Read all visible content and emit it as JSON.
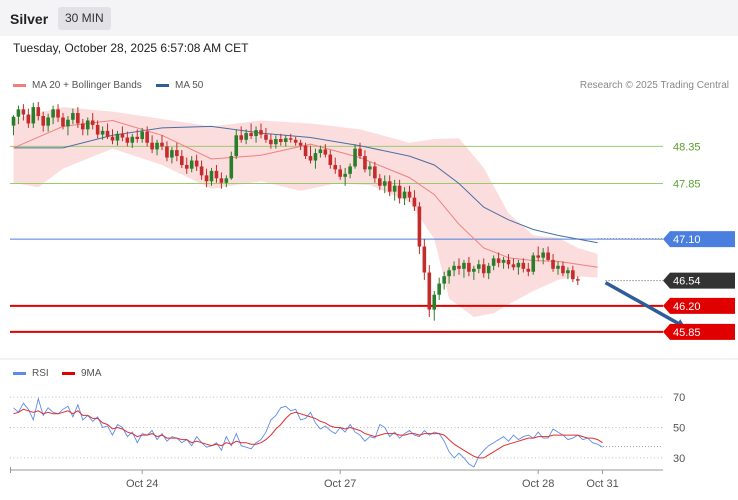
{
  "header": {
    "title": "Silver",
    "timeframe": "30 MIN"
  },
  "datetime": "Tuesday, October 28, 2025 6:57:08 AM CET",
  "legend": {
    "ma20": "MA 20 + Bollinger Bands",
    "ma50": "MA 50"
  },
  "credit": "Research © 2025 Trading Central",
  "rsi_legend": {
    "rsi": "RSI",
    "ma9": "9MA"
  },
  "colors": {
    "up": "#2a7d2a",
    "down": "#c42b2b",
    "ma20": "#f08080",
    "ma50": "#4a6fa5",
    "band": "#fbd5d5",
    "support": "#e00000",
    "pivot": "#4a7fe0",
    "resistance": "#9bcc6b",
    "current": "#333333",
    "arrow": "#2e5d99",
    "rsi": "#5b8de8",
    "rsi_ma": "#e03030"
  },
  "chart_data": [
    {
      "type": "candlestick",
      "xlabels": [
        {
          "label": "Oct 24",
          "index": 26
        },
        {
          "label": "Oct 27",
          "index": 66
        },
        {
          "label": "Oct 28",
          "index": 106
        },
        {
          "label": "Oct 31",
          "index": 119
        }
      ],
      "ylim": [
        45.47,
        49.03
      ],
      "candles": [
        [
          48.63,
          48.77,
          48.5,
          48.75
        ],
        [
          48.75,
          48.9,
          48.65,
          48.85
        ],
        [
          48.85,
          48.92,
          48.7,
          48.78
        ],
        [
          48.78,
          48.86,
          48.6,
          48.66
        ],
        [
          48.66,
          48.94,
          48.6,
          48.88
        ],
        [
          48.88,
          48.95,
          48.7,
          48.76
        ],
        [
          48.76,
          48.82,
          48.55,
          48.63
        ],
        [
          48.63,
          48.79,
          48.55,
          48.74
        ],
        [
          48.74,
          48.9,
          48.65,
          48.85
        ],
        [
          48.85,
          48.92,
          48.68,
          48.74
        ],
        [
          48.74,
          48.8,
          48.58,
          48.62
        ],
        [
          48.62,
          48.76,
          48.5,
          48.71
        ],
        [
          48.71,
          48.86,
          48.65,
          48.8
        ],
        [
          48.8,
          48.88,
          48.6,
          48.66
        ],
        [
          48.66,
          48.72,
          48.5,
          48.58
        ],
        [
          48.58,
          48.74,
          48.5,
          48.7
        ],
        [
          48.7,
          48.8,
          48.58,
          48.64
        ],
        [
          48.64,
          48.7,
          48.46,
          48.51
        ],
        [
          48.51,
          48.62,
          48.44,
          48.56
        ],
        [
          48.56,
          48.66,
          48.45,
          48.48
        ],
        [
          48.48,
          48.58,
          48.38,
          48.43
        ],
        [
          48.43,
          48.56,
          48.36,
          48.52
        ],
        [
          48.52,
          48.62,
          48.42,
          48.47
        ],
        [
          48.47,
          48.55,
          48.35,
          48.4
        ],
        [
          48.4,
          48.52,
          48.33,
          48.48
        ],
        [
          48.48,
          48.58,
          48.4,
          48.45
        ],
        [
          48.45,
          48.6,
          48.4,
          48.55
        ],
        [
          48.55,
          48.62,
          48.35,
          48.4
        ],
        [
          48.4,
          48.5,
          48.26,
          48.31
        ],
        [
          48.31,
          48.44,
          48.23,
          48.4
        ],
        [
          48.4,
          48.5,
          48.3,
          48.35
        ],
        [
          48.35,
          48.42,
          48.15,
          48.2
        ],
        [
          48.2,
          48.34,
          48.12,
          48.3
        ],
        [
          48.3,
          48.4,
          48.15,
          48.22
        ],
        [
          48.22,
          48.3,
          48.06,
          48.1
        ],
        [
          48.1,
          48.2,
          47.98,
          48.05
        ],
        [
          48.05,
          48.22,
          48.0,
          48.16
        ],
        [
          48.16,
          48.24,
          48.02,
          48.08
        ],
        [
          48.08,
          48.16,
          47.9,
          47.96
        ],
        [
          47.96,
          48.05,
          47.8,
          47.88
        ],
        [
          47.88,
          48.06,
          47.82,
          48.02
        ],
        [
          48.02,
          48.1,
          47.86,
          47.92
        ],
        [
          47.92,
          48.0,
          47.78,
          47.86
        ],
        [
          47.86,
          47.96,
          47.8,
          47.92
        ],
        [
          47.92,
          48.28,
          47.9,
          48.22
        ],
        [
          48.22,
          48.58,
          48.18,
          48.5
        ],
        [
          48.5,
          48.62,
          48.4,
          48.44
        ],
        [
          48.44,
          48.58,
          48.38,
          48.53
        ],
        [
          48.53,
          48.66,
          48.45,
          48.49
        ],
        [
          48.49,
          48.62,
          48.4,
          48.57
        ],
        [
          48.57,
          48.66,
          48.46,
          48.51
        ],
        [
          48.51,
          48.6,
          48.4,
          48.44
        ],
        [
          48.44,
          48.52,
          48.32,
          48.38
        ],
        [
          48.38,
          48.5,
          48.32,
          48.45
        ],
        [
          48.45,
          48.52,
          48.36,
          48.41
        ],
        [
          48.41,
          48.5,
          48.35,
          48.46
        ],
        [
          48.46,
          48.52,
          48.4,
          48.44
        ],
        [
          48.44,
          48.48,
          48.36,
          48.4
        ],
        [
          48.4,
          48.44,
          48.3,
          48.36
        ],
        [
          48.36,
          48.4,
          48.18,
          48.22
        ],
        [
          48.22,
          48.36,
          48.12,
          48.16
        ],
        [
          48.16,
          48.32,
          48.05,
          48.26
        ],
        [
          48.26,
          48.36,
          48.2,
          48.31
        ],
        [
          48.31,
          48.38,
          48.2,
          48.24
        ],
        [
          48.24,
          48.3,
          48.05,
          48.1
        ],
        [
          48.1,
          48.2,
          47.98,
          48.04
        ],
        [
          48.04,
          48.1,
          47.9,
          47.94
        ],
        [
          47.94,
          48.06,
          47.82,
          47.98
        ],
        [
          47.98,
          48.12,
          47.92,
          48.08
        ],
        [
          48.08,
          48.38,
          48.05,
          48.32
        ],
        [
          48.32,
          48.4,
          48.18,
          48.22
        ],
        [
          48.22,
          48.3,
          48.0,
          48.04
        ],
        [
          48.04,
          48.14,
          47.95,
          48.08
        ],
        [
          48.08,
          48.14,
          47.86,
          47.92
        ],
        [
          47.92,
          47.98,
          47.76,
          47.82
        ],
        [
          47.82,
          47.96,
          47.72,
          47.88
        ],
        [
          47.88,
          47.96,
          47.68,
          47.74
        ],
        [
          47.74,
          47.9,
          47.62,
          47.82
        ],
        [
          47.82,
          47.9,
          47.58,
          47.65
        ],
        [
          47.65,
          47.8,
          47.56,
          47.74
        ],
        [
          47.74,
          47.82,
          47.6,
          47.66
        ],
        [
          47.66,
          47.76,
          47.48,
          47.54
        ],
        [
          47.54,
          47.6,
          46.9,
          47.0
        ],
        [
          47.0,
          47.1,
          46.55,
          46.65
        ],
        [
          46.65,
          46.75,
          46.05,
          46.15
        ],
        [
          46.15,
          46.4,
          46.0,
          46.35
        ],
        [
          46.35,
          46.58,
          46.28,
          46.5
        ],
        [
          46.5,
          46.66,
          46.42,
          46.6
        ],
        [
          46.6,
          46.72,
          46.5,
          46.68
        ],
        [
          46.68,
          46.8,
          46.6,
          46.74
        ],
        [
          46.74,
          46.84,
          46.62,
          46.7
        ],
        [
          46.7,
          46.82,
          46.58,
          46.78
        ],
        [
          46.78,
          46.86,
          46.6,
          46.66
        ],
        [
          46.66,
          46.74,
          46.55,
          46.7
        ],
        [
          46.7,
          46.82,
          46.64,
          46.76
        ],
        [
          46.76,
          46.84,
          46.58,
          46.64
        ],
        [
          46.64,
          46.78,
          46.56,
          46.74
        ],
        [
          46.74,
          46.88,
          46.68,
          46.84
        ],
        [
          46.84,
          46.92,
          46.72,
          46.78
        ],
        [
          46.78,
          46.86,
          46.7,
          46.82
        ],
        [
          46.82,
          46.9,
          46.7,
          46.76
        ],
        [
          46.76,
          46.84,
          46.68,
          46.72
        ],
        [
          46.72,
          46.82,
          46.62,
          46.78
        ],
        [
          46.78,
          46.84,
          46.65,
          46.7
        ],
        [
          46.7,
          46.78,
          46.6,
          46.66
        ],
        [
          46.66,
          46.92,
          46.62,
          46.88
        ],
        [
          46.88,
          47.0,
          46.8,
          46.85
        ],
        [
          46.85,
          46.98,
          46.76,
          46.92
        ],
        [
          46.92,
          47.0,
          46.8,
          46.82
        ],
        [
          46.82,
          46.9,
          46.66,
          46.7
        ],
        [
          46.7,
          46.8,
          46.62,
          46.74
        ],
        [
          46.74,
          46.8,
          46.6,
          46.64
        ],
        [
          46.64,
          46.72,
          46.56,
          46.68
        ],
        [
          46.68,
          46.74,
          46.52,
          46.56
        ],
        [
          46.56,
          46.6,
          46.48,
          46.54
        ]
      ],
      "ma20": [
        [
          0,
          48.33
        ],
        [
          10,
          48.62
        ],
        [
          20,
          48.7
        ],
        [
          30,
          48.5
        ],
        [
          40,
          48.18
        ],
        [
          50,
          48.23
        ],
        [
          60,
          48.38
        ],
        [
          70,
          48.2
        ],
        [
          80,
          47.93
        ],
        [
          85,
          47.7
        ],
        [
          90,
          47.3
        ],
        [
          95,
          46.98
        ],
        [
          100,
          46.85
        ],
        [
          105,
          46.81
        ],
        [
          110,
          46.8
        ],
        [
          114,
          46.76
        ],
        [
          118,
          46.72
        ]
      ],
      "ma50": [
        [
          0,
          48.33
        ],
        [
          10,
          48.33
        ],
        [
          20,
          48.5
        ],
        [
          30,
          48.6
        ],
        [
          40,
          48.62
        ],
        [
          50,
          48.53
        ],
        [
          60,
          48.47
        ],
        [
          70,
          48.36
        ],
        [
          80,
          48.22
        ],
        [
          85,
          48.1
        ],
        [
          90,
          47.85
        ],
        [
          95,
          47.53
        ],
        [
          100,
          47.36
        ],
        [
          105,
          47.23
        ],
        [
          110,
          47.15
        ],
        [
          118,
          47.05
        ]
      ],
      "bb_upper": [
        [
          0,
          48.72
        ],
        [
          10,
          48.88
        ],
        [
          20,
          48.82
        ],
        [
          30,
          48.72
        ],
        [
          40,
          48.62
        ],
        [
          50,
          48.7
        ],
        [
          60,
          48.66
        ],
        [
          70,
          48.58
        ],
        [
          80,
          48.4
        ],
        [
          85,
          48.45
        ],
        [
          90,
          48.46
        ],
        [
          95,
          48.06
        ],
        [
          100,
          47.45
        ],
        [
          105,
          47.15
        ],
        [
          110,
          47.12
        ],
        [
          114,
          46.98
        ],
        [
          118,
          46.9
        ]
      ],
      "bb_lower": [
        [
          0,
          47.86
        ],
        [
          5,
          47.8
        ],
        [
          10,
          48.05
        ],
        [
          20,
          48.32
        ],
        [
          30,
          48.1
        ],
        [
          40,
          47.78
        ],
        [
          50,
          47.88
        ],
        [
          58,
          47.75
        ],
        [
          65,
          47.85
        ],
        [
          72,
          47.83
        ],
        [
          80,
          47.6
        ],
        [
          85,
          47.1
        ],
        [
          88,
          46.3
        ],
        [
          93,
          46.05
        ],
        [
          97,
          46.1
        ],
        [
          100,
          46.22
        ],
        [
          105,
          46.4
        ],
        [
          110,
          46.55
        ],
        [
          114,
          46.6
        ],
        [
          118,
          46.58
        ]
      ],
      "levels": [
        {
          "value": 48.35,
          "label": "48.35",
          "kind": "resistance"
        },
        {
          "value": 47.85,
          "label": "47.85",
          "kind": "resistance"
        },
        {
          "value": 47.1,
          "label": "47.10",
          "kind": "pivot"
        },
        {
          "value": 46.54,
          "label": "46.54",
          "kind": "current"
        },
        {
          "value": 46.2,
          "label": "46.20",
          "kind": "support"
        },
        {
          "value": 45.85,
          "label": "45.85",
          "kind": "support"
        }
      ],
      "arrow": {
        "from": [
          119,
          46.54
        ],
        "to": [
          136,
          45.85
        ]
      }
    },
    {
      "type": "line",
      "title": "RSI",
      "ylim": [
        22,
        78
      ],
      "yticks": [
        70,
        50,
        30
      ],
      "current_level": 37.5,
      "series": [
        {
          "name": "RSI",
          "values": [
            63,
            60,
            66,
            62,
            55,
            69,
            58,
            63,
            60,
            59,
            62,
            64,
            57,
            65,
            55,
            58,
            54,
            57,
            50,
            51,
            45,
            52,
            50,
            44,
            47,
            40,
            46,
            45,
            48,
            42,
            46,
            41,
            44,
            43,
            40,
            42,
            38,
            44,
            40,
            37,
            38,
            40,
            35,
            44,
            38,
            46,
            38,
            37,
            36,
            40,
            42,
            47,
            55,
            58,
            63,
            64,
            61,
            62,
            55,
            56,
            60,
            53,
            49,
            51,
            48,
            46,
            50,
            47,
            52,
            47,
            45,
            41,
            44,
            43,
            52,
            50,
            44,
            47,
            43,
            46,
            48,
            45,
            44,
            48,
            45,
            47,
            46,
            41,
            34,
            30,
            33,
            30,
            26,
            24,
            31,
            35,
            38,
            40,
            42,
            44,
            41,
            45,
            42,
            44,
            45,
            43,
            47,
            43,
            43,
            49,
            47,
            45,
            42,
            43,
            45,
            42,
            43,
            40,
            39,
            37
          ]
        },
        {
          "name": "9MA",
          "values": [
            59,
            60,
            62,
            61,
            60,
            61,
            59,
            60,
            59,
            59,
            60,
            61,
            59,
            61,
            58,
            58,
            56,
            56,
            53,
            52,
            49,
            50,
            49,
            47,
            46,
            44,
            45,
            45,
            46,
            44,
            45,
            43,
            43,
            43,
            42,
            42,
            40,
            41,
            40,
            39,
            38,
            39,
            38,
            40,
            39,
            41,
            40,
            40,
            39,
            39,
            40,
            42,
            45,
            49,
            52,
            56,
            59,
            60,
            59,
            58,
            57,
            56,
            54,
            53,
            51,
            50,
            50,
            49,
            50,
            49,
            48,
            46,
            45,
            44,
            45,
            46,
            46,
            46,
            45,
            45,
            46,
            46,
            45,
            46,
            46,
            46,
            46,
            45,
            42,
            39,
            37,
            35,
            33,
            31,
            30,
            30,
            32,
            34,
            36,
            38,
            39,
            40,
            41,
            42,
            43,
            43,
            44,
            44,
            44,
            45,
            45,
            45,
            45,
            45,
            45,
            44,
            43,
            43,
            42,
            40
          ]
        }
      ]
    }
  ]
}
